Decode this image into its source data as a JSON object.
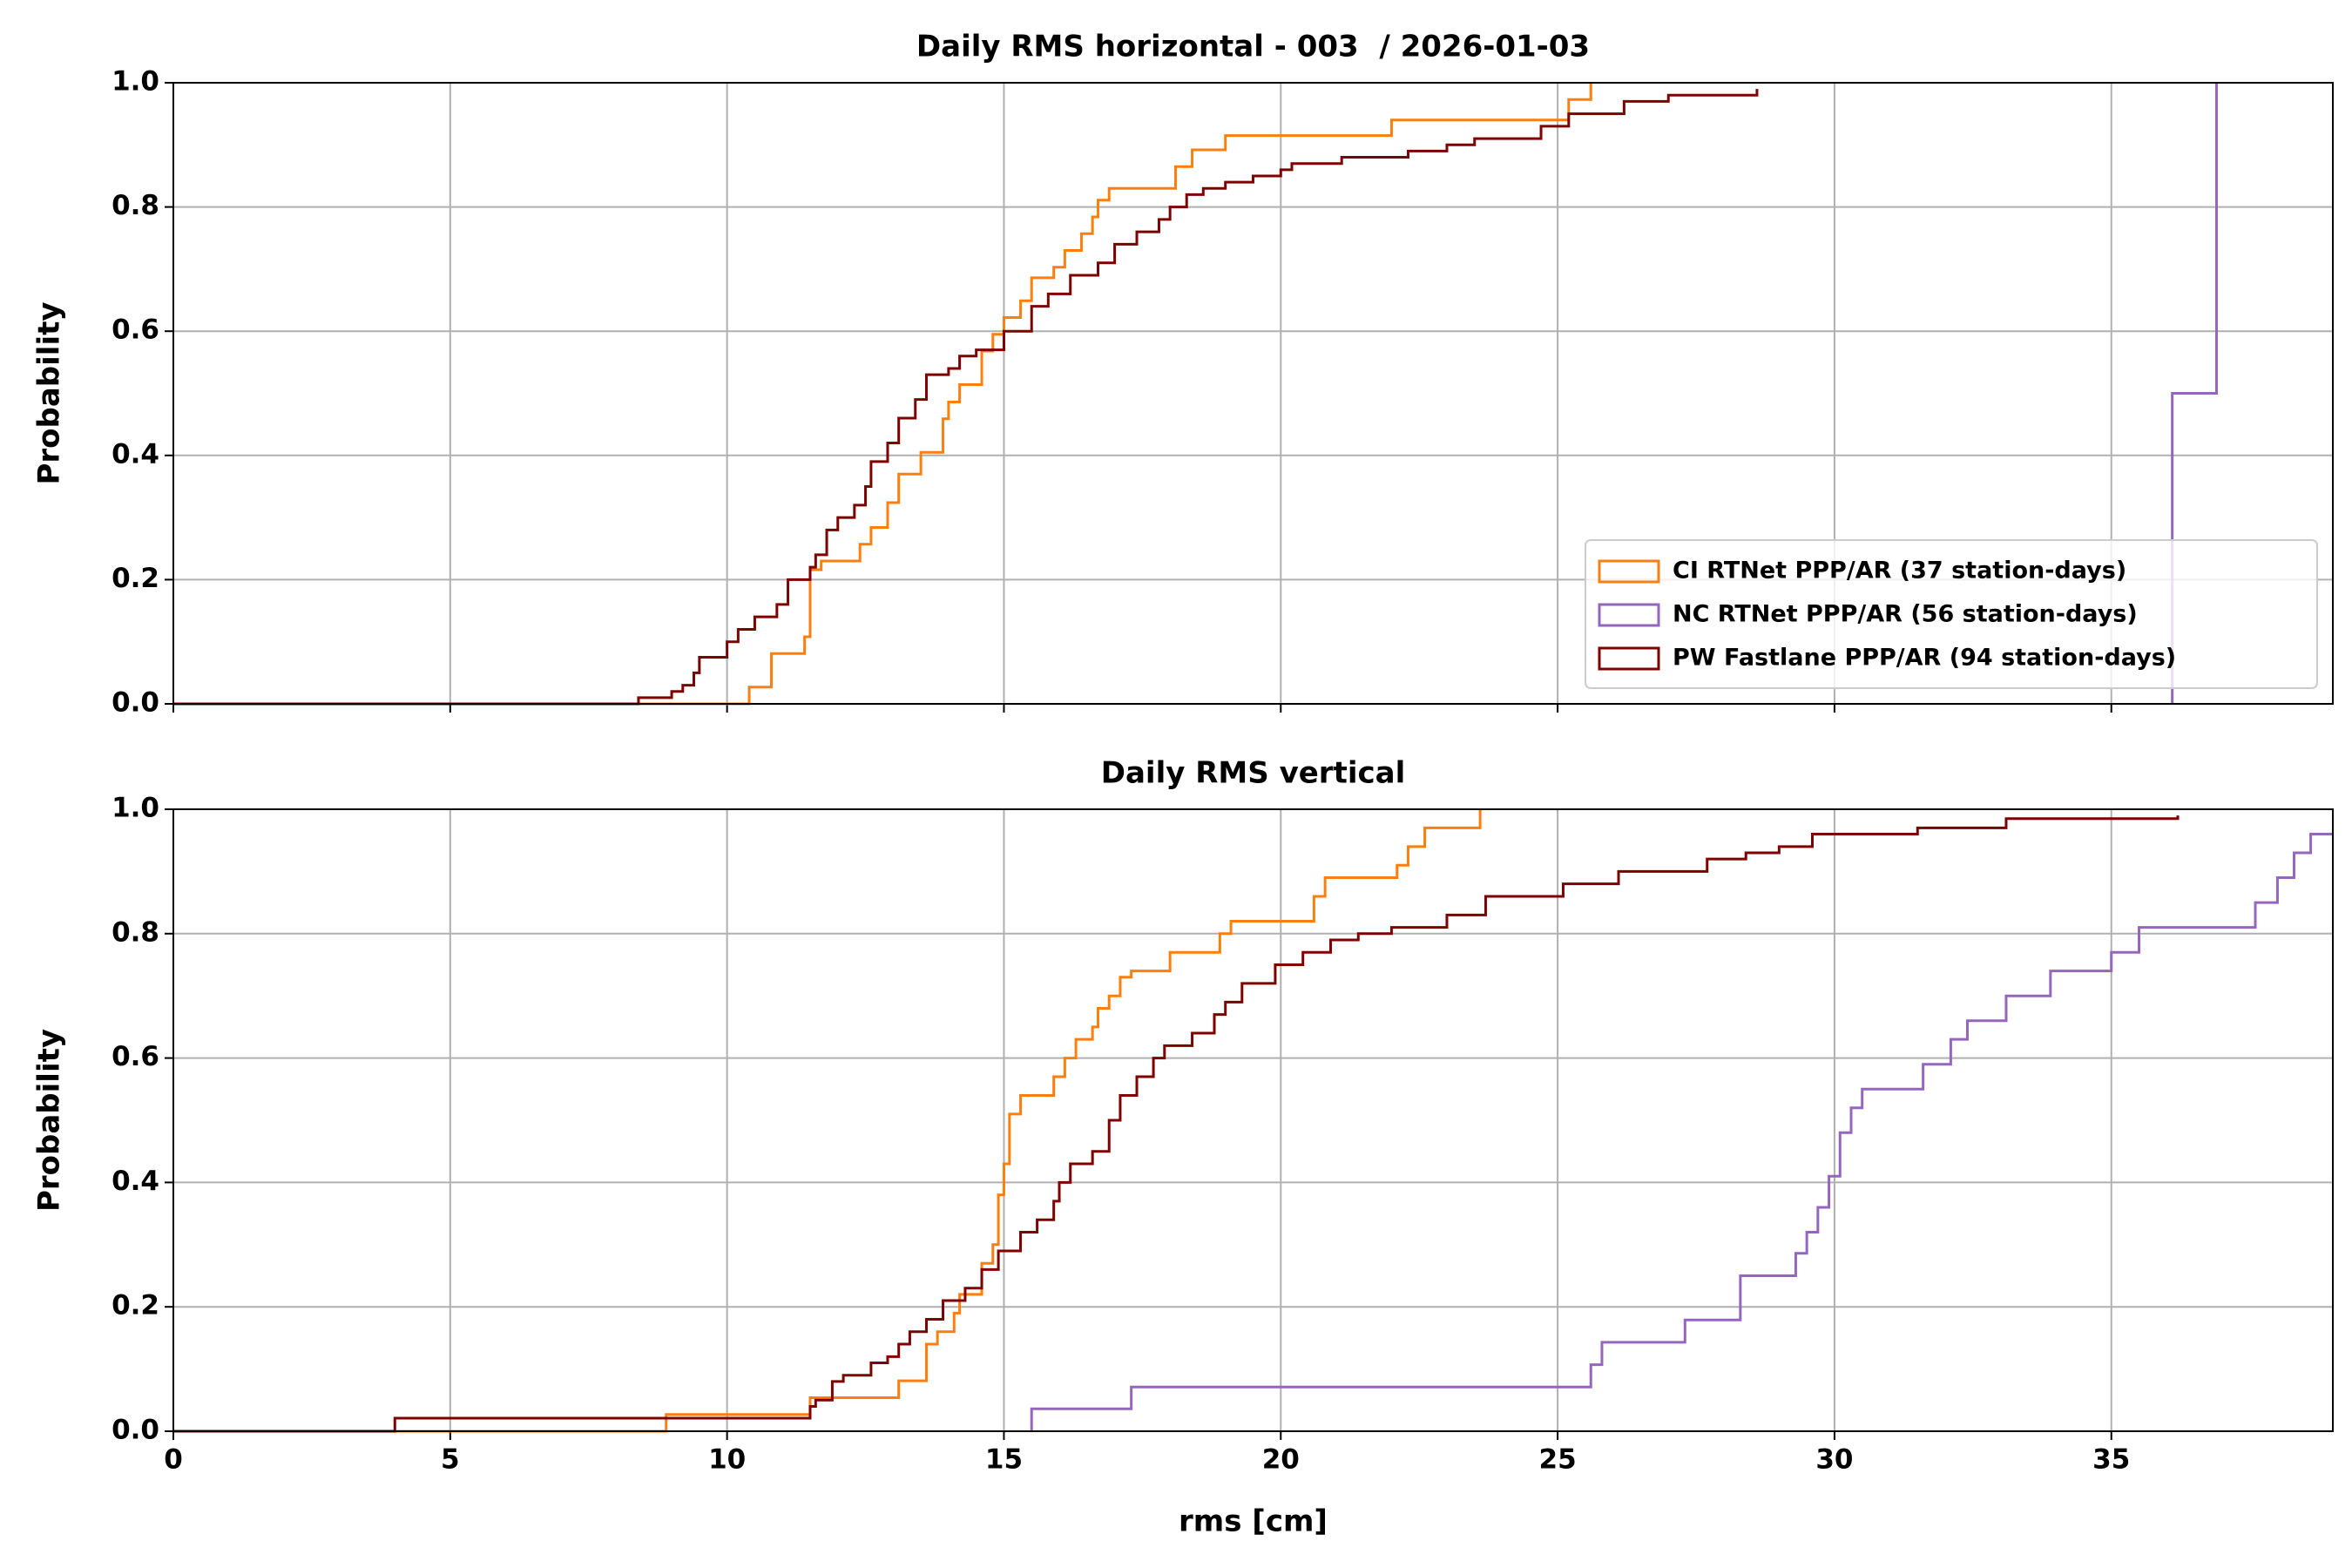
{
  "chart_data": [
    {
      "type": "line",
      "step": "post",
      "title": "Daily RMS horizontal - 003  / 2026-01-03",
      "ylabel": "Probability",
      "xlim": [
        0,
        39
      ],
      "ylim": [
        0,
        1
      ],
      "xticks": [
        0,
        5,
        10,
        15,
        20,
        25,
        30,
        35
      ],
      "show_xtick_labels": false,
      "yticks": [
        {
          "value": 0,
          "label": "0.0"
        },
        {
          "value": 0.2,
          "label": "0.2"
        },
        {
          "value": 0.4,
          "label": "0.4"
        },
        {
          "value": 0.6,
          "label": "0.6"
        },
        {
          "value": 0.8,
          "label": "0.8"
        },
        {
          "value": 1,
          "label": "1.0"
        }
      ],
      "grid": true,
      "legend": "lower right",
      "series": [
        {
          "name": "CI RTNet PPP/AR (37 station-days)",
          "color": "#ff7f0e",
          "x": [
            0,
            10.4,
            10.8,
            11.4,
            11.5,
            11.7,
            12.4,
            12.6,
            12.9,
            13.1,
            13.5,
            13.9,
            14.0,
            14.2,
            14.6,
            14.8,
            15.0,
            15.3,
            15.5,
            15.9,
            16.1,
            16.4,
            16.6,
            16.7,
            16.9,
            18.1,
            18.4,
            19.0,
            22.0,
            25.2,
            25.6
          ],
          "values": [
            0,
            0.027,
            0.081,
            0.108,
            0.216,
            0.23,
            0.257,
            0.284,
            0.324,
            0.37,
            0.405,
            0.459,
            0.486,
            0.514,
            0.568,
            0.595,
            0.622,
            0.649,
            0.686,
            0.703,
            0.73,
            0.757,
            0.784,
            0.811,
            0.83,
            0.865,
            0.892,
            0.915,
            0.94,
            0.973,
            1.0
          ]
        },
        {
          "name": "NC RTNet PPP/AR (56 station-days)",
          "color": "#9467bd",
          "x": [
            36.1,
            36.1,
            36.9
          ],
          "values": [
            0,
            0.5,
            1.0
          ]
        },
        {
          "name": "PW Fastlane PPP/AR (94 station-days)",
          "color": "#7f0000",
          "x": [
            0,
            8.4,
            9.0,
            9.2,
            9.4,
            9.5,
            10.0,
            10.2,
            10.5,
            10.9,
            11.1,
            11.5,
            11.6,
            11.8,
            12.0,
            12.3,
            12.5,
            12.6,
            12.9,
            13.1,
            13.4,
            13.6,
            14.0,
            14.2,
            14.5,
            15.0,
            15.5,
            15.8,
            16.2,
            16.7,
            17.0,
            17.4,
            17.8,
            18.0,
            18.3,
            18.6,
            19.0,
            19.5,
            20.0,
            20.2,
            21.1,
            22.3,
            23.0,
            23.5,
            24.7,
            25.2,
            26.2,
            27.0,
            28.6
          ],
          "values": [
            0,
            0.01,
            0.02,
            0.03,
            0.05,
            0.075,
            0.1,
            0.12,
            0.14,
            0.16,
            0.2,
            0.22,
            0.24,
            0.28,
            0.3,
            0.32,
            0.35,
            0.39,
            0.42,
            0.46,
            0.49,
            0.53,
            0.54,
            0.56,
            0.57,
            0.6,
            0.64,
            0.66,
            0.69,
            0.71,
            0.74,
            0.76,
            0.78,
            0.8,
            0.82,
            0.83,
            0.84,
            0.85,
            0.86,
            0.87,
            0.88,
            0.89,
            0.9,
            0.91,
            0.93,
            0.95,
            0.97,
            0.98,
            0.99
          ]
        }
      ]
    },
    {
      "type": "line",
      "step": "post",
      "title": "Daily RMS vertical",
      "ylabel": "Probability",
      "xlabel": "rms [cm]",
      "xlim": [
        0,
        39
      ],
      "ylim": [
        0,
        1
      ],
      "xticks": [
        0,
        5,
        10,
        15,
        20,
        25,
        30,
        35
      ],
      "show_xtick_labels": true,
      "yticks": [
        {
          "value": 0,
          "label": "0.0"
        },
        {
          "value": 0.2,
          "label": "0.2"
        },
        {
          "value": 0.4,
          "label": "0.4"
        },
        {
          "value": 0.6,
          "label": "0.6"
        },
        {
          "value": 0.8,
          "label": "0.8"
        },
        {
          "value": 1,
          "label": "1.0"
        }
      ],
      "grid": true,
      "series": [
        {
          "color": "#ff7f0e",
          "x": [
            0,
            8.9,
            11.5,
            13.1,
            13.6,
            13.8,
            14.1,
            14.2,
            14.6,
            14.8,
            14.9,
            15.0,
            15.1,
            15.3,
            15.9,
            16.1,
            16.3,
            16.6,
            16.7,
            16.9,
            17.1,
            17.3,
            18.0,
            18.9,
            19.1,
            20.6,
            20.8,
            22.1,
            22.3,
            22.6,
            23.6
          ],
          "values": [
            0,
            0.027,
            0.054,
            0.081,
            0.14,
            0.16,
            0.19,
            0.22,
            0.27,
            0.3,
            0.38,
            0.43,
            0.51,
            0.54,
            0.57,
            0.6,
            0.63,
            0.65,
            0.68,
            0.7,
            0.73,
            0.74,
            0.77,
            0.8,
            0.82,
            0.86,
            0.89,
            0.91,
            0.94,
            0.97,
            1.0
          ]
        },
        {
          "color": "#9467bd",
          "x": [
            15.5,
            15.5,
            17.3,
            25.6,
            25.8,
            27.3,
            28.3,
            29.3,
            29.5,
            29.7,
            29.9,
            30.1,
            30.3,
            30.5,
            31.6,
            32.1,
            32.4,
            33.1,
            33.9,
            35.0,
            35.5,
            37.6,
            38.0,
            38.3,
            38.6,
            39
          ],
          "values": [
            0,
            0.036,
            0.071,
            0.107,
            0.143,
            0.179,
            0.25,
            0.286,
            0.32,
            0.36,
            0.41,
            0.48,
            0.52,
            0.55,
            0.59,
            0.63,
            0.66,
            0.7,
            0.74,
            0.77,
            0.81,
            0.85,
            0.89,
            0.93,
            0.96,
            0.96
          ]
        },
        {
          "color": "#7f0000",
          "x": [
            0,
            4.0,
            11.5,
            11.6,
            11.9,
            12.1,
            12.6,
            12.9,
            13.1,
            13.3,
            13.6,
            13.9,
            14.3,
            14.6,
            14.9,
            15.3,
            15.6,
            15.9,
            16.0,
            16.2,
            16.6,
            16.9,
            17.1,
            17.4,
            17.7,
            17.9,
            18.4,
            18.8,
            19.0,
            19.3,
            19.9,
            20.4,
            20.9,
            21.4,
            22.0,
            23.0,
            23.7,
            25.1,
            26.1,
            27.7,
            28.4,
            29.0,
            29.6,
            31.5,
            33.1,
            36.2
          ],
          "values": [
            0,
            0.021,
            0.04,
            0.05,
            0.08,
            0.09,
            0.11,
            0.12,
            0.14,
            0.16,
            0.18,
            0.21,
            0.23,
            0.26,
            0.29,
            0.32,
            0.34,
            0.37,
            0.4,
            0.43,
            0.45,
            0.5,
            0.54,
            0.57,
            0.6,
            0.62,
            0.64,
            0.67,
            0.69,
            0.72,
            0.75,
            0.77,
            0.79,
            0.8,
            0.81,
            0.83,
            0.86,
            0.88,
            0.9,
            0.92,
            0.93,
            0.94,
            0.96,
            0.97,
            0.985,
            0.99
          ]
        }
      ]
    }
  ]
}
